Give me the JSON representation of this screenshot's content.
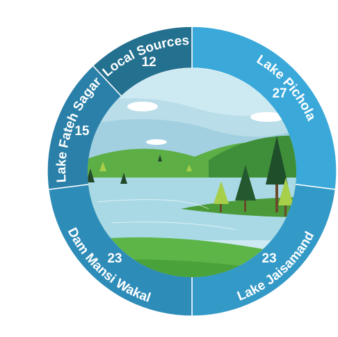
{
  "chart_data": {
    "type": "donut",
    "categories": [
      "Lake Pichola",
      "Lake Jaisamand",
      "Dam Mansi Wakal",
      "Lake Fateh Sagar",
      "Local Sources"
    ],
    "values": [
      27,
      23,
      23,
      15,
      12
    ],
    "colors": [
      "#3aa9da",
      "#3399c7",
      "#2e8cb8",
      "#2a80a8",
      "#23708f"
    ]
  }
}
